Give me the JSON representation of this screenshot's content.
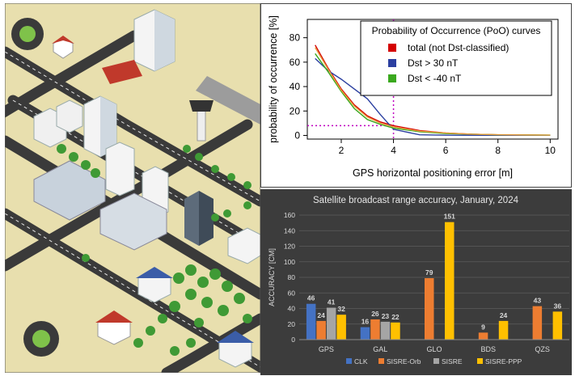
{
  "chart_data": [
    {
      "type": "line",
      "title": "",
      "xlabel": "GPS horizontal positioning error [m]",
      "ylabel": "probability of occurrence [%]",
      "xlim": [
        0.7,
        10.3
      ],
      "ylim": [
        -3,
        95
      ],
      "xticks": [
        "2",
        "4",
        "6",
        "8",
        "10"
      ],
      "yticks": [
        "0",
        "20",
        "40",
        "60",
        "80"
      ],
      "legend_title": "Probability of Occurrence (PoO) curves",
      "legend_position": "top-right",
      "grid": false,
      "threshold": {
        "x": 4,
        "y": 8
      },
      "series": [
        {
          "name": "total (not Dst-classified)",
          "color": "#d40000",
          "x": [
            1,
            1.5,
            2,
            2.5,
            3,
            3.5,
            4,
            5,
            6,
            7,
            8,
            9,
            10
          ],
          "y": [
            74,
            55,
            38,
            25,
            16,
            11,
            8,
            4,
            2,
            1,
            0.5,
            0.3,
            0.2
          ]
        },
        {
          "name": "Dst > 30 nT",
          "color": "#2b3fa0",
          "x": [
            1,
            1.5,
            2,
            2.5,
            3,
            3.5,
            4,
            5,
            6,
            7,
            8,
            9,
            10
          ],
          "y": [
            63,
            53,
            46,
            38,
            30,
            17,
            5,
            0.5,
            0.2,
            0.1,
            0.1,
            0.1,
            0.1
          ]
        },
        {
          "name": "Dst < -40 nT",
          "color": "#3aa81e",
          "x": [
            1,
            1.5,
            2,
            2.5,
            3,
            3.5,
            4,
            5,
            6,
            7,
            8,
            9,
            10
          ],
          "y": [
            67,
            52,
            36,
            22,
            13,
            9,
            6,
            3,
            1.5,
            1,
            0.5,
            0.4,
            0.3
          ]
        },
        {
          "name": "",
          "color": "#e8a040",
          "x": [
            1,
            1.5,
            2,
            2.5,
            3,
            3.5,
            4,
            5,
            6,
            7,
            8,
            9,
            10
          ],
          "y": [
            72,
            54,
            37,
            24,
            15,
            10,
            7,
            3.5,
            2,
            1,
            0.6,
            0.4,
            0.3
          ]
        }
      ]
    },
    {
      "type": "bar",
      "title": "Satellite broadcast range accuracy, January, 2024",
      "xlabel": "",
      "ylabel": "ACCURACY [CM]",
      "ylim": [
        0,
        160
      ],
      "yticks": [
        "0",
        "20",
        "40",
        "60",
        "80",
        "100",
        "120",
        "140",
        "160"
      ],
      "categories": [
        "GPS",
        "GAL",
        "GLO",
        "BDS",
        "QZS"
      ],
      "grid": true,
      "legend_position": "bottom",
      "series": [
        {
          "name": "CLK",
          "color": "#4472c4",
          "values": [
            46,
            16,
            null,
            null,
            null
          ]
        },
        {
          "name": "SISRE-Orb",
          "color": "#ed7d31",
          "values": [
            24,
            26,
            79,
            9,
            43
          ]
        },
        {
          "name": "SISRE",
          "color": "#a5a5a5",
          "values": [
            41,
            23,
            null,
            null,
            null
          ]
        },
        {
          "name": "SISRE-PPP",
          "color": "#ffc000",
          "values": [
            32,
            22,
            151,
            24,
            36
          ]
        }
      ]
    }
  ]
}
